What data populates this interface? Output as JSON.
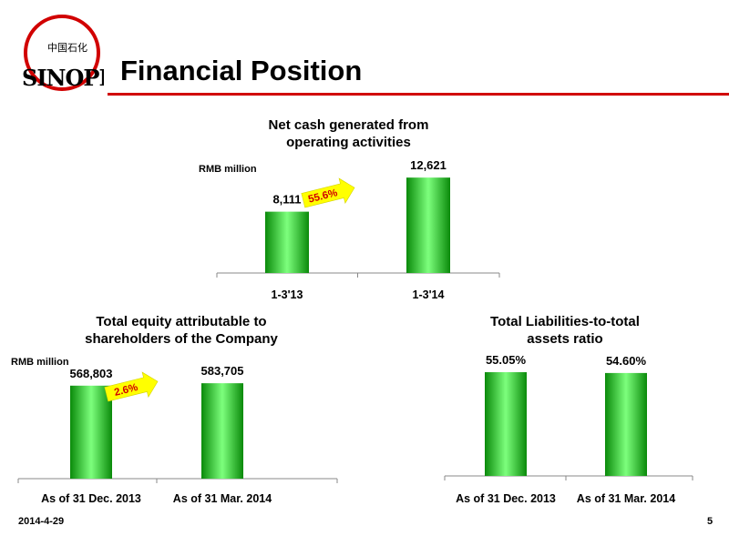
{
  "header": {
    "title": "Financial Position",
    "logo_text": "SINOPEC 中国石化",
    "accent_color": "#d10000"
  },
  "footer": {
    "date": "2014-4-29",
    "page_number": "5"
  },
  "colors": {
    "bar_light": "#7dff7d",
    "bar_mid": "#12c812",
    "bar_dark": "#0a8a0a",
    "arrow_fill": "#ffff00",
    "axis": "#888888"
  },
  "chart_data": [
    {
      "type": "bar",
      "title_lines": [
        "Net cash generated from",
        "operating activities"
      ],
      "unit": "RMB million",
      "categories": [
        "1-3'13",
        "1-3'14"
      ],
      "values": [
        8111,
        12621
      ],
      "value_labels": [
        "8,111",
        "12,621"
      ],
      "growth_label": "55.6%",
      "ylim": [
        0,
        13000
      ]
    },
    {
      "type": "bar",
      "title_lines": [
        "Total equity attributable to",
        "shareholders of the Company"
      ],
      "unit": "RMB million",
      "categories": [
        "As of 31 Dec. 2013",
        "As of 31 Mar. 2014"
      ],
      "values": [
        568803,
        583705
      ],
      "value_labels": [
        "568,803",
        "583,705"
      ],
      "growth_label": "2.6%",
      "ylim": [
        0,
        590000
      ]
    },
    {
      "type": "bar",
      "title_lines": [
        "Total Liabilities-to-total",
        "assets ratio"
      ],
      "unit": "",
      "categories": [
        "As of 31 Dec. 2013",
        "As of 31 Mar. 2014"
      ],
      "values": [
        55.05,
        54.6
      ],
      "value_labels": [
        "55.05%",
        "54.60%"
      ],
      "growth_label": "",
      "ylim": [
        0,
        56
      ]
    }
  ]
}
